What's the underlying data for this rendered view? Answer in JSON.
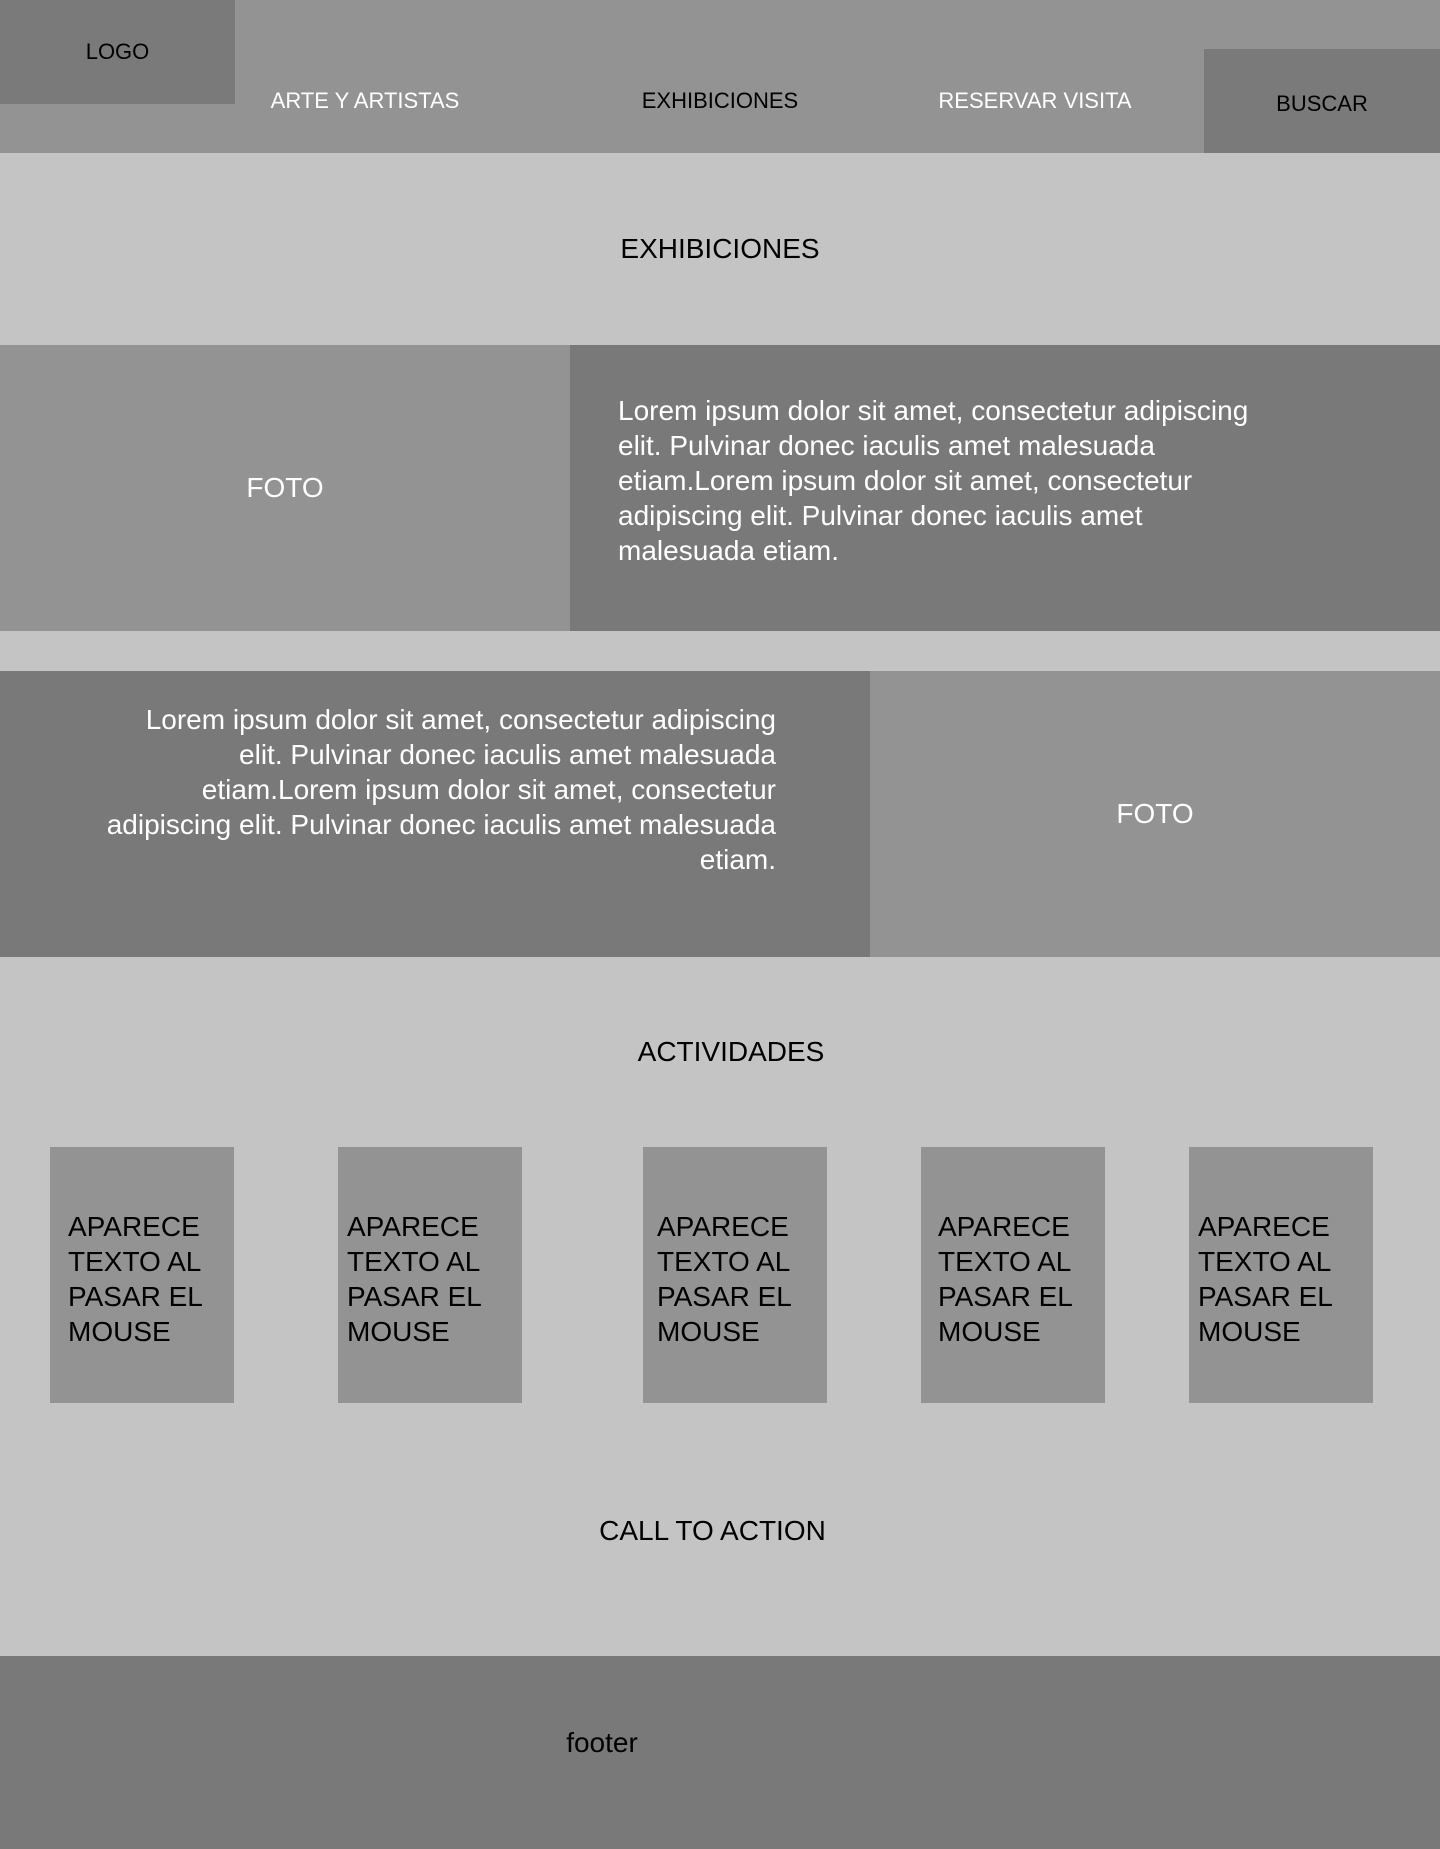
{
  "header": {
    "logo": "LOGO",
    "nav": {
      "arte": "ARTE Y ARTISTAS",
      "exhibiciones": "EXHIBICIONES",
      "reservar": "RESERVAR VISITA"
    },
    "search_label": "BUSCAR"
  },
  "exhibitions": {
    "title": "EXHIBICIONES",
    "rows": [
      {
        "photo": "FOTO",
        "text": "Lorem ipsum dolor sit amet, consectetur adipiscing elit. Pulvinar donec iaculis amet malesuada etiam.Lorem ipsum dolor sit amet, consectetur adipiscing elit. Pulvinar donec iaculis amet malesuada etiam."
      },
      {
        "photo": "FOTO",
        "text": "Lorem ipsum dolor sit amet, consectetur adipiscing elit. Pulvinar donec iaculis amet malesuada etiam.Lorem ipsum dolor sit amet, consectetur adipiscing elit. Pulvinar donec iaculis amet malesuada etiam."
      }
    ]
  },
  "activities": {
    "title": "ACTIVIDADES",
    "cards": [
      "APARECE TEXTO AL PASAR EL MOUSE",
      "APARECE TEXTO AL PASAR EL MOUSE",
      "APARECE TEXTO AL PASAR EL MOUSE",
      "APARECE TEXTO AL PASAR EL MOUSE",
      "APARECE TEXTO AL PASAR EL MOUSE"
    ]
  },
  "cta": "CALL TO ACTION",
  "footer": "footer",
  "colors": {
    "page_background": "#c4c4c4",
    "block_light": "#939393",
    "block_dark": "#797979"
  }
}
